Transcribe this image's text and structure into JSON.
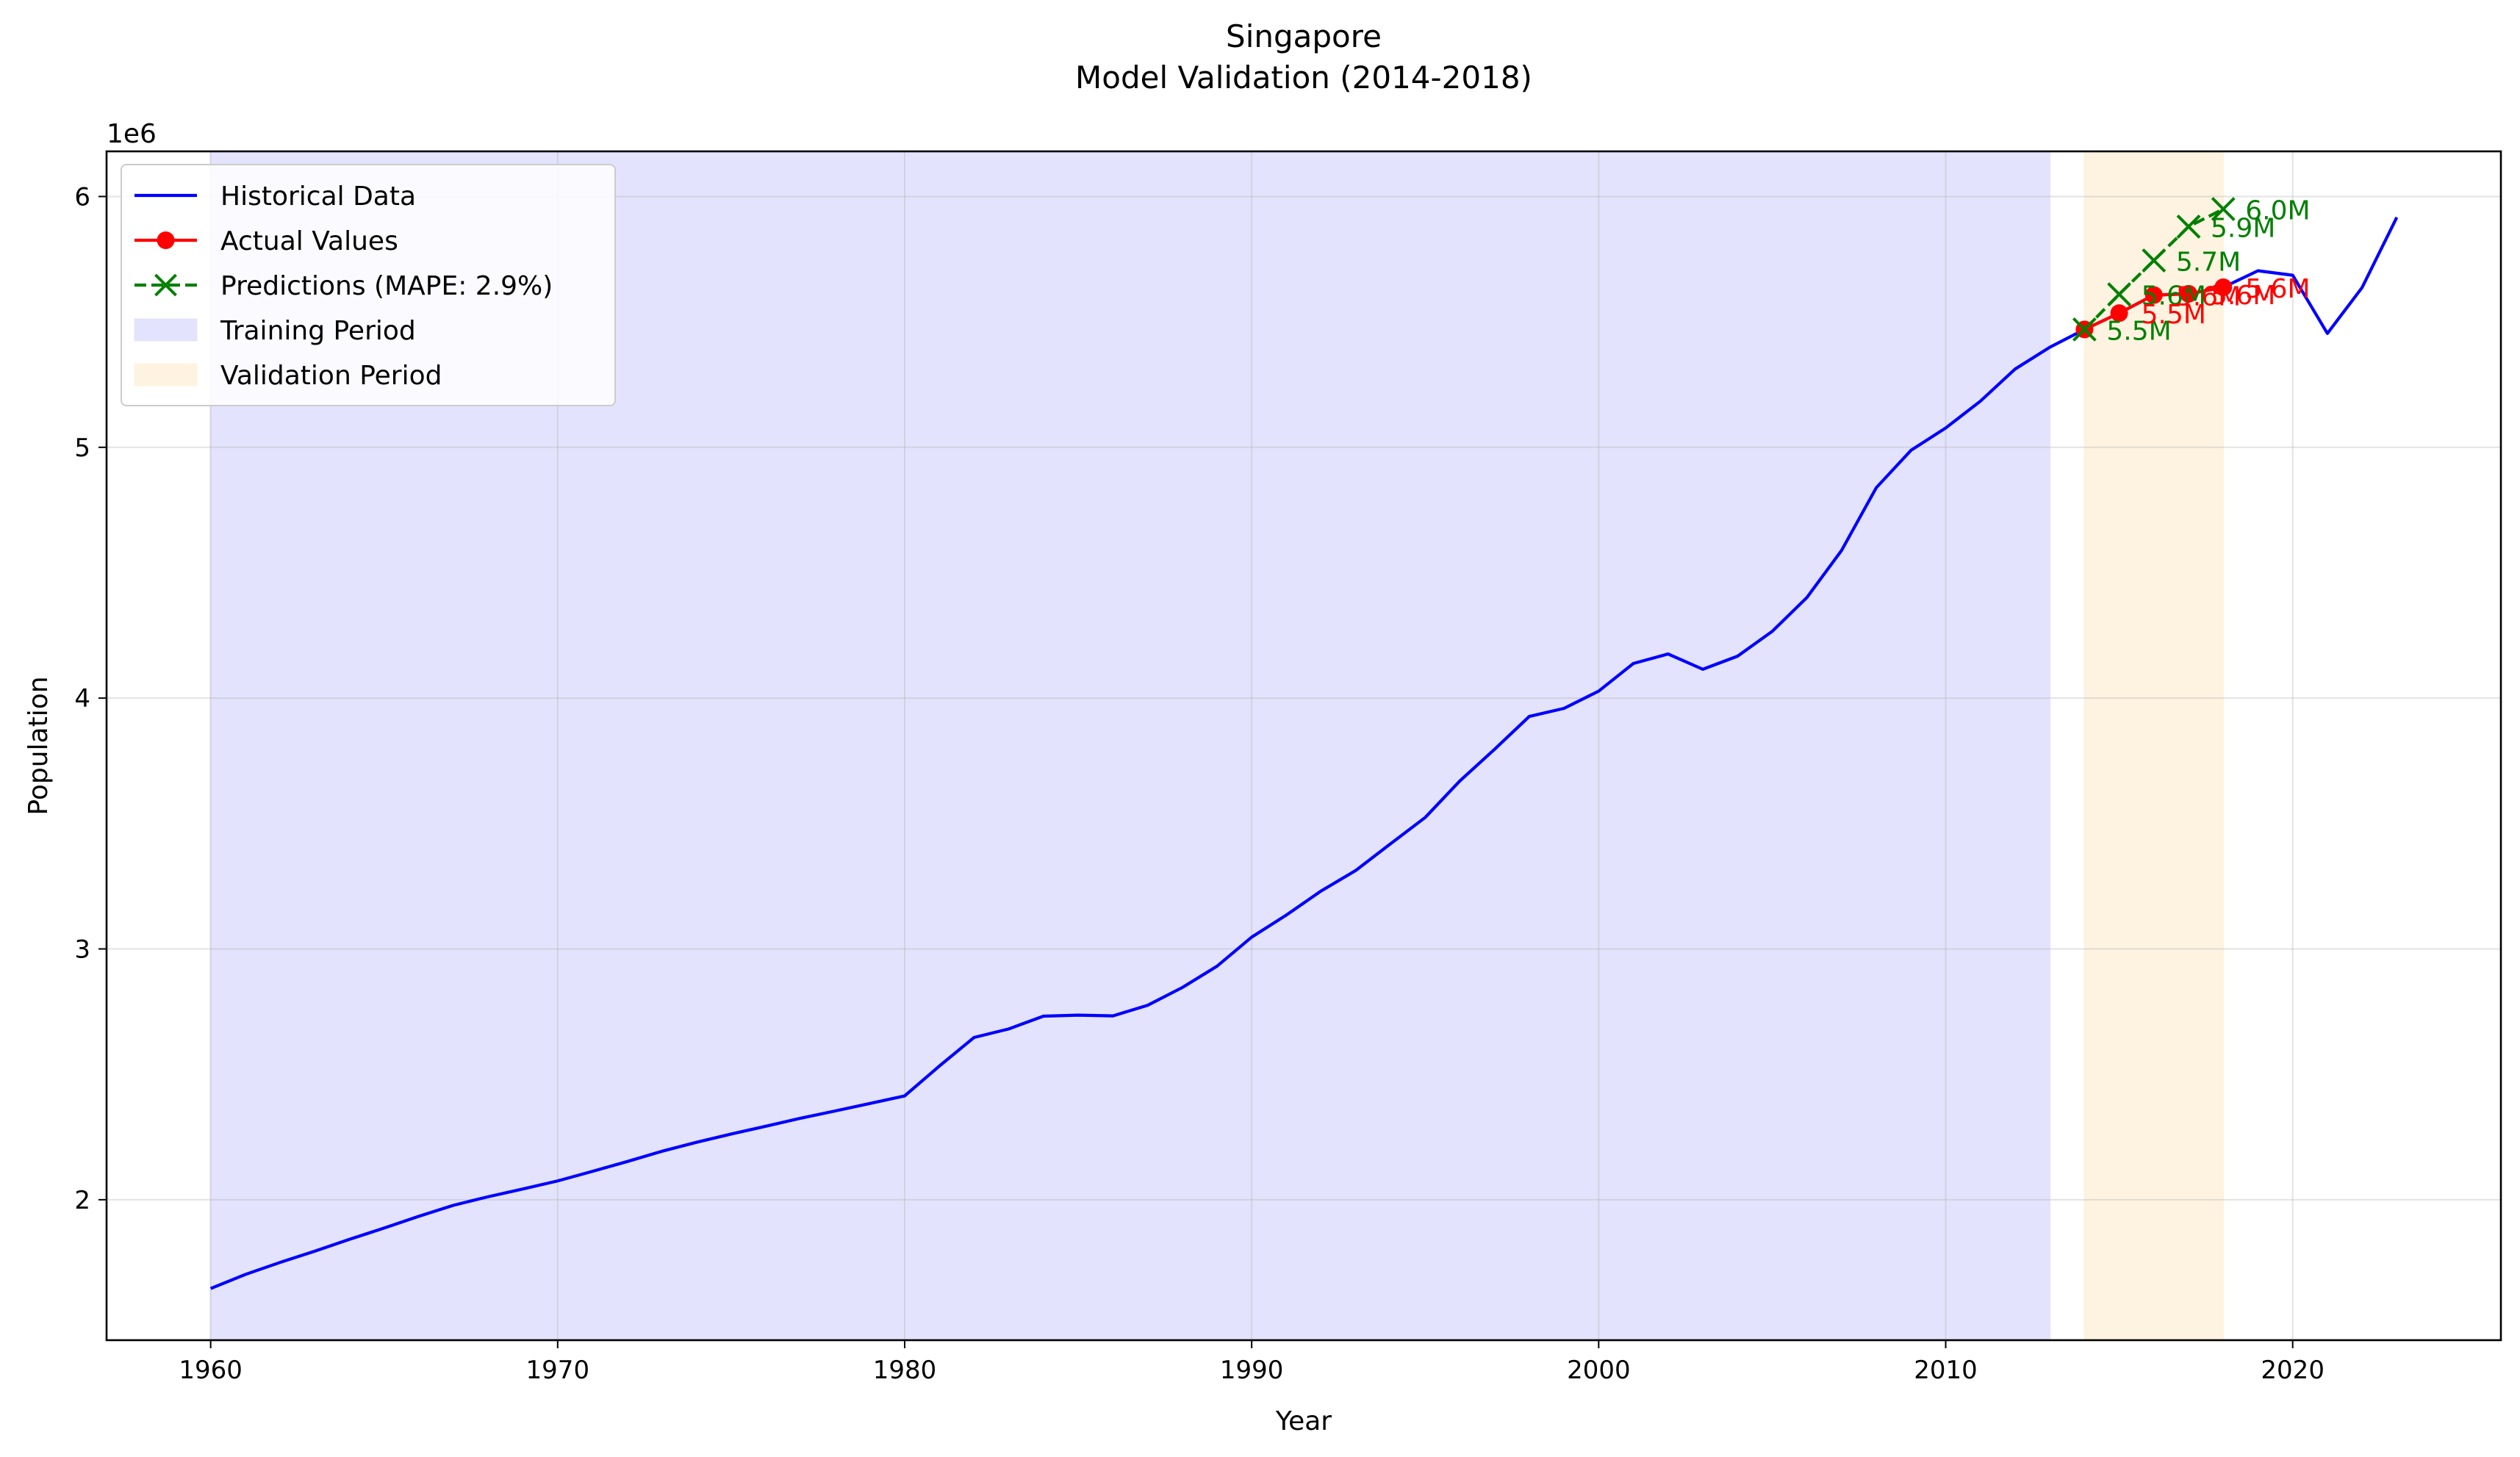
{
  "chart_data": {
    "type": "line",
    "title_line1": "Singapore",
    "title_line2": "Model Validation (2014-2018)",
    "xlabel": "Year",
    "ylabel": "Population",
    "y_offset_label": "1e6",
    "xlim": [
      1957,
      2026
    ],
    "ylim": [
      1440000,
      6180000
    ],
    "x_ticks": [
      1960,
      1970,
      1980,
      1990,
      2000,
      2010,
      2020
    ],
    "y_ticks": [
      {
        "value": 2000000,
        "label": "2"
      },
      {
        "value": 3000000,
        "label": "3"
      },
      {
        "value": 4000000,
        "label": "4"
      },
      {
        "value": 5000000,
        "label": "5"
      },
      {
        "value": 6000000,
        "label": "6"
      }
    ],
    "grid": true,
    "legend_position": "upper-left",
    "colors": {
      "historical": "#0000ff",
      "actual": "#ff0000",
      "predicted": "#008000",
      "training": "#e3e3fd",
      "validation": "#fdf3e0"
    },
    "legend": [
      {
        "key": "historical",
        "label": "Historical Data"
      },
      {
        "key": "actual",
        "label": "Actual Values"
      },
      {
        "key": "predicted",
        "label": "Predictions (MAPE: 2.9%)"
      },
      {
        "key": "training",
        "label": "Training Period"
      },
      {
        "key": "validation",
        "label": "Validation Period"
      }
    ],
    "spans": [
      {
        "key": "training",
        "start": 1960,
        "end": 2013
      },
      {
        "key": "validation",
        "start": 2014,
        "end": 2018
      }
    ],
    "series": [
      {
        "key": "historical",
        "name": "Historical Data",
        "x": [
          1960,
          1961,
          1962,
          1963,
          1964,
          1965,
          1966,
          1967,
          1968,
          1969,
          1970,
          1971,
          1972,
          1973,
          1974,
          1975,
          1976,
          1977,
          1978,
          1979,
          1980,
          1981,
          1982,
          1983,
          1984,
          1985,
          1986,
          1987,
          1988,
          1989,
          1990,
          1991,
          1992,
          1993,
          1994,
          1995,
          1996,
          1997,
          1998,
          1999,
          2000,
          2001,
          2002,
          2003,
          2004,
          2005,
          2006,
          2007,
          2008,
          2009,
          2010,
          2011,
          2012,
          2013,
          2014,
          2015,
          2016,
          2017,
          2018,
          2019,
          2020,
          2021,
          2022,
          2023
        ],
        "y": [
          1646000,
          1702000,
          1750000,
          1795000,
          1842000,
          1887000,
          1934000,
          1978000,
          2012000,
          2043000,
          2075000,
          2113000,
          2152000,
          2193000,
          2229000,
          2262000,
          2293000,
          2325000,
          2354000,
          2384000,
          2414000,
          2533000,
          2647000,
          2681000,
          2732000,
          2736000,
          2733000,
          2775000,
          2846000,
          2931000,
          3047000,
          3135000,
          3231000,
          3313000,
          3419000,
          3524000,
          3670000,
          3796000,
          3927000,
          3959000,
          4028000,
          4138000,
          4176000,
          4115000,
          4167000,
          4266000,
          4401000,
          4589000,
          4839000,
          4988000,
          5077000,
          5184000,
          5312000,
          5399000,
          5470000,
          5535000,
          5607000,
          5612000,
          5638000,
          5704000,
          5686000,
          5454000,
          5637000,
          5917000
        ]
      },
      {
        "key": "actual",
        "name": "Actual Values",
        "x": [
          2014,
          2015,
          2016,
          2017,
          2018
        ],
        "y": [
          5470000,
          5535000,
          5607000,
          5612000,
          5638000
        ],
        "labels": [
          "",
          "5.5M",
          "5.6M",
          "5.6M",
          "5.6M"
        ]
      },
      {
        "key": "predicted",
        "name": "Predictions (MAPE: 2.9%)",
        "x": [
          2014,
          2015,
          2016,
          2017,
          2018
        ],
        "y": [
          5470000,
          5610000,
          5745000,
          5880000,
          5950000
        ],
        "labels": [
          "5.5M",
          "5.6M",
          "5.7M",
          "5.9M",
          "6.0M"
        ]
      }
    ]
  }
}
